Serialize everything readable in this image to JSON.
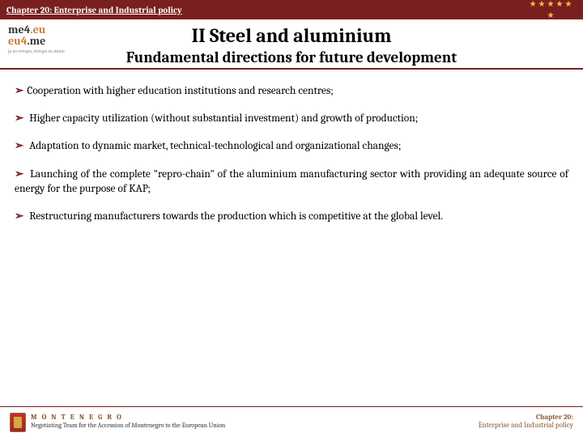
{
  "header": {
    "title": "Chapter 20: Enterprise and Industrial policy"
  },
  "logo": {
    "line1a": "me4",
    "line1b": ".eu",
    "line2a": "eu4",
    "line2b": ".me",
    "sub": "ja za evropu, evropa za mene"
  },
  "titles": {
    "main": "II   Steel and aluminium",
    "sub": "Fundamental directions for future development"
  },
  "bullets": [
    "Cooperation with higher education institutions and research centres;",
    "Higher capacity utilization (without substantial investment) and growth of production;",
    "Adaptation to dynamic market, technical-technological and organizational changes;",
    "Launching of the complete \"repro-chain\" of the aluminium manufacturing sector with providing an adequate source of energy for the purpose of KAP;",
    "Restructuring manufacturers towards the production which is competitive at the global level."
  ],
  "footer": {
    "country": "M O N T E N E G R O",
    "team": "Negotiating Team for the Accession of Montenegro to the European Union",
    "chapter": "Chapter 20:",
    "policy": "Enterprise and Industrial policy"
  },
  "colors": {
    "header_bg": "#7a1f1f",
    "bullet_marker": "#7a1f1f",
    "footer_accent": "#8a5a2e",
    "star": "#f0c040"
  }
}
